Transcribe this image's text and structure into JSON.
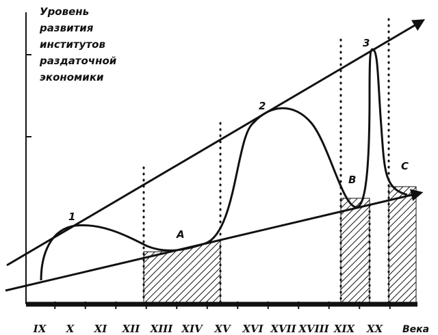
{
  "y_axis_title": [
    "Уровень",
    "развития",
    "институтов",
    "раздаточной",
    "экономики"
  ],
  "x_axis_label": "Века",
  "centuries": [
    "IX",
    "X",
    "XI",
    "XII",
    "XIII",
    "XIV",
    "XV",
    "XVI",
    "XVII",
    "XVIII",
    "XIX",
    "XX"
  ],
  "points": {
    "p1": "1",
    "p2": "2",
    "p3": "3",
    "pA": "A",
    "pB": "B",
    "pC": "C"
  },
  "colors": {
    "ink": "#111111",
    "background": "#ffffff"
  }
}
